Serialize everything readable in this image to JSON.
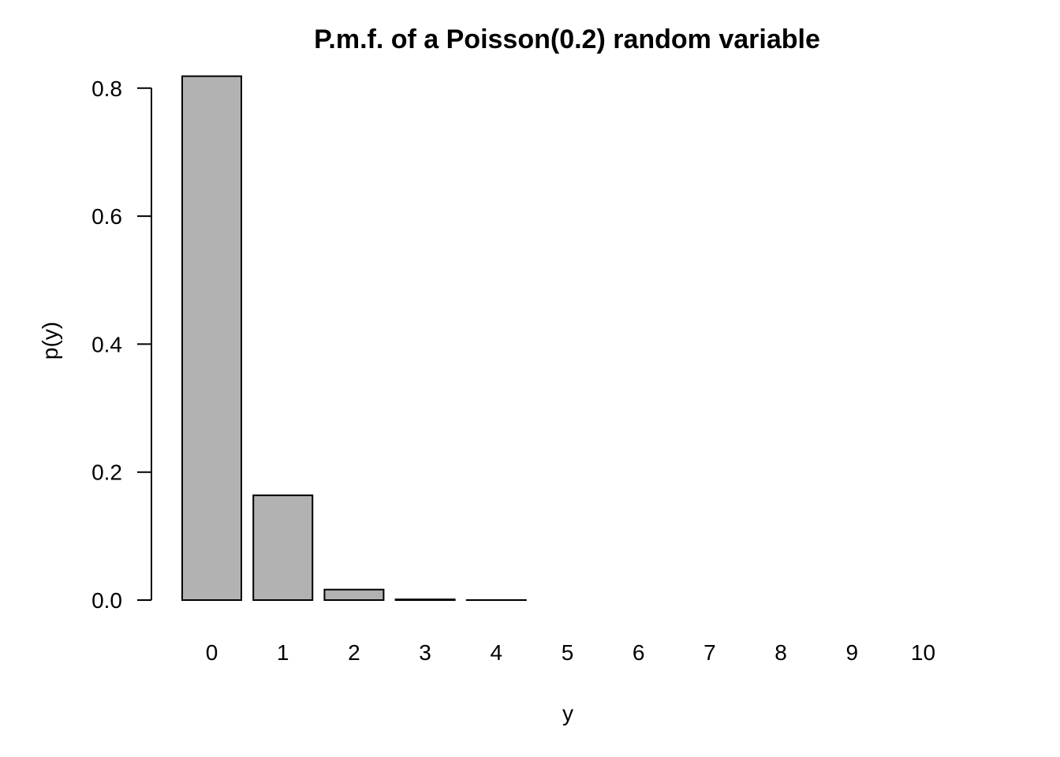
{
  "chart_data": {
    "type": "bar",
    "title": "P.m.f. of a Poisson(0.2) random variable",
    "xlabel": "y",
    "ylabel": "p(y)",
    "categories": [
      "0",
      "1",
      "2",
      "3",
      "4",
      "5",
      "6",
      "7",
      "8",
      "9",
      "10"
    ],
    "values": [
      0.8187,
      0.1637,
      0.0164,
      0.0011,
      0.0001,
      0.0,
      0.0,
      0.0,
      0.0,
      0.0,
      0.0
    ],
    "y_ticks": [
      "0.0",
      "0.2",
      "0.4",
      "0.6",
      "0.8"
    ],
    "y_tick_values": [
      0,
      0.2,
      0.4,
      0.6,
      0.8
    ],
    "ylim": [
      0,
      0.8187
    ],
    "grid": false,
    "legend": "none",
    "colors": {
      "bar_fill": "#b2b2b2",
      "bar_stroke": "#000000",
      "axis": "#000000",
      "text": "#000000"
    }
  }
}
